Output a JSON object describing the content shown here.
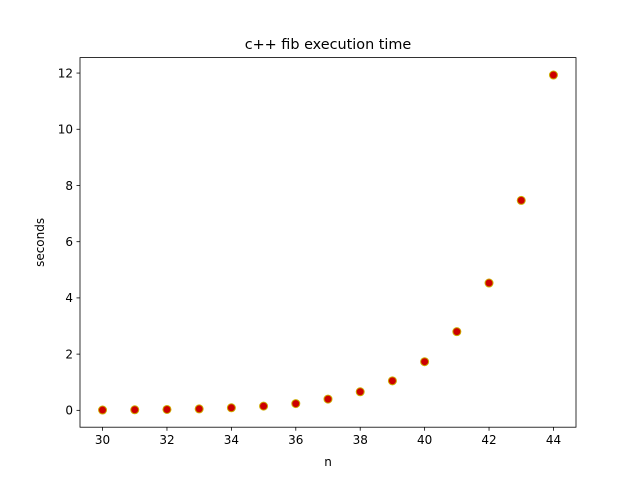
{
  "chart_data": {
    "type": "scatter",
    "title": "c++ fib execution time",
    "xlabel": "n",
    "ylabel": "seconds",
    "xlim": [
      29.3,
      44.7
    ],
    "ylim": [
      -0.6,
      12.55
    ],
    "xticks": [
      30,
      32,
      34,
      36,
      38,
      40,
      42,
      44
    ],
    "yticks": [
      0,
      2,
      4,
      6,
      8,
      10,
      12
    ],
    "grid": false,
    "marker_face": "#cc0000",
    "marker_edge": "#ccaa00",
    "series": [
      {
        "x": [
          30,
          31,
          32,
          33,
          34,
          35,
          36,
          37,
          38,
          39,
          40,
          41,
          42,
          43,
          44
        ],
        "y": [
          0.01,
          0.02,
          0.03,
          0.05,
          0.09,
          0.15,
          0.24,
          0.4,
          0.66,
          1.05,
          1.73,
          2.8,
          4.53,
          7.47,
          11.93
        ]
      }
    ]
  }
}
